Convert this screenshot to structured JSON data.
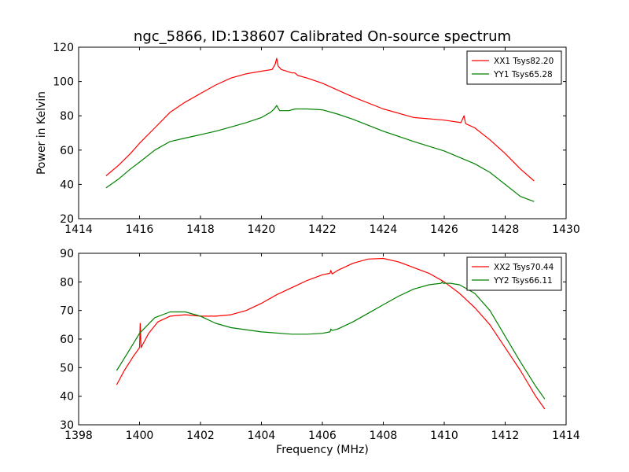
{
  "figure": {
    "title": "ngc_5866, ID:138607 Calibrated On-source spectrum"
  },
  "chart_data": [
    {
      "type": "line",
      "title": "ngc_5866, ID:138607 Calibrated On-source spectrum",
      "xlabel": "",
      "ylabel": "Power in Kelvin",
      "xlim": [
        1414,
        1430
      ],
      "ylim": [
        20,
        120
      ],
      "xticks": [
        1414,
        1416,
        1418,
        1420,
        1422,
        1424,
        1426,
        1428,
        1430
      ],
      "yticks": [
        20,
        40,
        60,
        80,
        100,
        120
      ],
      "grid": false,
      "legend_position": "top-right",
      "series": [
        {
          "name": "XX1 Tsys82.20",
          "color": "#ff0000",
          "x": [
            1414.9,
            1415.3,
            1415.7,
            1416.0,
            1416.5,
            1417.0,
            1417.5,
            1418.0,
            1418.5,
            1419.0,
            1419.5,
            1420.0,
            1420.35,
            1420.45,
            1420.5,
            1420.55,
            1420.65,
            1421.0,
            1421.1,
            1421.2,
            1421.5,
            1422.0,
            1423.0,
            1424.0,
            1425.0,
            1426.0,
            1426.55,
            1426.65,
            1426.7,
            1426.75,
            1427.0,
            1427.5,
            1428.0,
            1428.5,
            1428.95
          ],
          "y": [
            45,
            51,
            58,
            64,
            73,
            82,
            88,
            93,
            98,
            102,
            104.5,
            106,
            107,
            110,
            113.5,
            109,
            107,
            105,
            105,
            103.5,
            102,
            99,
            91,
            84,
            79,
            77.5,
            76,
            80,
            75.5,
            75,
            73,
            66,
            58,
            49,
            42
          ]
        },
        {
          "name": "YY1 Tsys65.28",
          "color": "#008000",
          "x": [
            1414.9,
            1415.3,
            1415.7,
            1416.0,
            1416.5,
            1417.0,
            1417.5,
            1418.0,
            1418.5,
            1419.0,
            1419.5,
            1420.0,
            1420.3,
            1420.42,
            1420.5,
            1420.6,
            1420.9,
            1421.1,
            1421.5,
            1422.0,
            1422.5,
            1423.0,
            1424.0,
            1425.0,
            1426.0,
            1427.0,
            1427.5,
            1428.0,
            1428.5,
            1428.95
          ],
          "y": [
            38,
            43,
            49,
            53,
            60,
            65,
            67,
            69,
            71,
            73.5,
            76,
            79,
            82,
            84,
            86,
            83,
            83,
            84,
            84,
            83.5,
            81,
            78,
            71,
            65,
            59.5,
            52,
            47,
            40,
            33,
            30
          ]
        }
      ]
    },
    {
      "type": "line",
      "title": "",
      "xlabel": "Frequency (MHz)",
      "ylabel": "",
      "xlim": [
        1398,
        1414
      ],
      "ylim": [
        30,
        90
      ],
      "xticks": [
        1398,
        1400,
        1402,
        1404,
        1406,
        1408,
        1410,
        1412,
        1414
      ],
      "yticks": [
        30,
        40,
        50,
        60,
        70,
        80,
        90
      ],
      "grid": false,
      "legend_position": "top-right",
      "series": [
        {
          "name": "XX2 Tsys70.44",
          "color": "#ff0000",
          "x": [
            1399.25,
            1399.5,
            1399.8,
            1400.0,
            1400.02,
            1400.05,
            1400.3,
            1400.6,
            1401.0,
            1401.5,
            1402.0,
            1402.5,
            1403.0,
            1403.5,
            1404.0,
            1404.5,
            1405.0,
            1405.5,
            1406.0,
            1406.25,
            1406.28,
            1406.32,
            1406.5,
            1407.0,
            1407.5,
            1408.0,
            1408.5,
            1409.0,
            1409.5,
            1410.0,
            1410.5,
            1411.0,
            1411.5,
            1412.0,
            1412.5,
            1413.0,
            1413.3
          ],
          "y": [
            44,
            49,
            54,
            57,
            65.5,
            57,
            62,
            66,
            68,
            68.5,
            68,
            68,
            68.5,
            70,
            72.5,
            75.5,
            78,
            80.5,
            82.5,
            83,
            84,
            82.8,
            84,
            86.5,
            88,
            88.2,
            87,
            85,
            83,
            80,
            76,
            71,
            65,
            57,
            49,
            40,
            35.5
          ]
        },
        {
          "name": "YY2 Tsys66.11",
          "color": "#008000",
          "x": [
            1399.25,
            1399.6,
            1400.0,
            1400.5,
            1401.0,
            1401.5,
            1402.0,
            1402.5,
            1403.0,
            1404.0,
            1405.0,
            1405.5,
            1406.0,
            1406.25,
            1406.28,
            1406.32,
            1406.5,
            1407.0,
            1407.5,
            1408.0,
            1408.5,
            1409.0,
            1409.5,
            1409.9,
            1409.93,
            1409.96,
            1410.2,
            1410.5,
            1411.0,
            1411.5,
            1412.0,
            1412.5,
            1413.0,
            1413.3
          ],
          "y": [
            49,
            55,
            62,
            67.5,
            69.5,
            69.5,
            68,
            65.5,
            64,
            62.5,
            61.7,
            61.7,
            62,
            62.5,
            63.5,
            63,
            63.5,
            66,
            69,
            72,
            75,
            77.5,
            79,
            79.5,
            80,
            79.5,
            79.5,
            79,
            76,
            70,
            61,
            52,
            43.5,
            39
          ]
        }
      ]
    }
  ]
}
